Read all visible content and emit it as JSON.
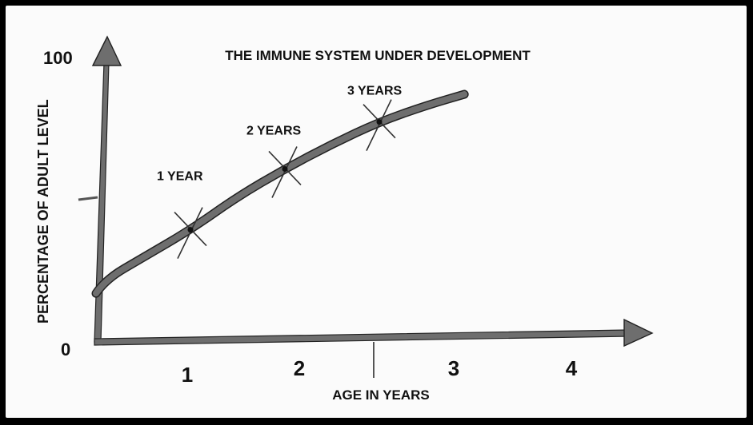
{
  "chart_data": {
    "type": "line",
    "title": "THE IMMUNE SYSTEM UNDER DEVELOPMENT",
    "xlabel": "AGE IN YEARS",
    "ylabel": "PERCENTAGE OF ADULT LEVEL",
    "xlim": [
      0,
      4.3
    ],
    "ylim": [
      0,
      100
    ],
    "x_ticks": [
      "1",
      "2",
      "3",
      "4"
    ],
    "y_ticks": [
      "0",
      "100"
    ],
    "series": [
      {
        "x": [
          0,
          0.1,
          0.5,
          1.0,
          1.5,
          2.0,
          2.5,
          3.0,
          3.5,
          3.9
        ],
        "values": [
          17,
          22,
          30,
          40,
          52,
          62,
          71,
          79,
          85,
          89
        ]
      }
    ],
    "annotations": [
      {
        "x": 1,
        "y": 40,
        "label": "1 YEAR"
      },
      {
        "x": 2,
        "y": 62,
        "label": "2 YEARS"
      },
      {
        "x": 3,
        "y": 79,
        "label": "3 YEARS"
      }
    ],
    "colors": {
      "axis": "#6e6e6e",
      "curve": "#6e6e6e",
      "border": "#000000",
      "background": "#fbfbfb"
    }
  }
}
